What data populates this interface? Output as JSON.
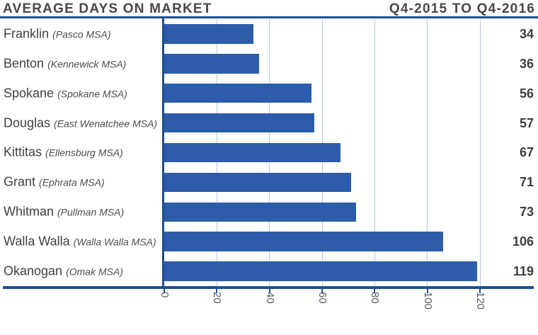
{
  "header": {
    "title_left": "AVERAGE DAYS ON MARKET",
    "title_right": "Q4-2015 TO Q4-2016"
  },
  "chart_data": {
    "type": "bar",
    "orientation": "horizontal",
    "title": "AVERAGE DAYS ON MARKET",
    "subtitle": "Q4-2015 TO Q4-2016",
    "xlabel": "",
    "ylabel": "",
    "xlim": [
      0,
      120
    ],
    "x_ticks": [
      "0",
      "20",
      "40",
      "60",
      "80",
      "100",
      "120"
    ],
    "grid": "vertical-on",
    "legend": "none",
    "rows": [
      {
        "county": "Franklin",
        "msa": "(Pasco MSA)",
        "value": 34
      },
      {
        "county": "Benton",
        "msa": "(Kennewick MSA)",
        "value": 36
      },
      {
        "county": "Spokane",
        "msa": "(Spokane MSA)",
        "value": 56
      },
      {
        "county": "Douglas",
        "msa": "(East Wenatchee MSA)",
        "value": 57
      },
      {
        "county": "Kittitas",
        "msa": "(Ellensburg MSA)",
        "value": 67
      },
      {
        "county": "Grant",
        "msa": "(Ephrata MSA)",
        "value": 71
      },
      {
        "county": "Whitman",
        "msa": "(Pullman MSA)",
        "value": 73
      },
      {
        "county": "Walla Walla",
        "msa": "(Walla Walla MSA)",
        "value": 106
      },
      {
        "county": "Okanogan",
        "msa": "(Omak MSA)",
        "value": 119
      }
    ],
    "colors": {
      "bar": "#2d5caa",
      "axis_rule": "#1c4f93",
      "gridline": "#b3c8e4",
      "title_text": "#474747",
      "county_text": "#3f3f3f",
      "msa_text": "#4d4d4d",
      "value_text": "#3d3d3d",
      "tick_text": "#595959"
    }
  }
}
